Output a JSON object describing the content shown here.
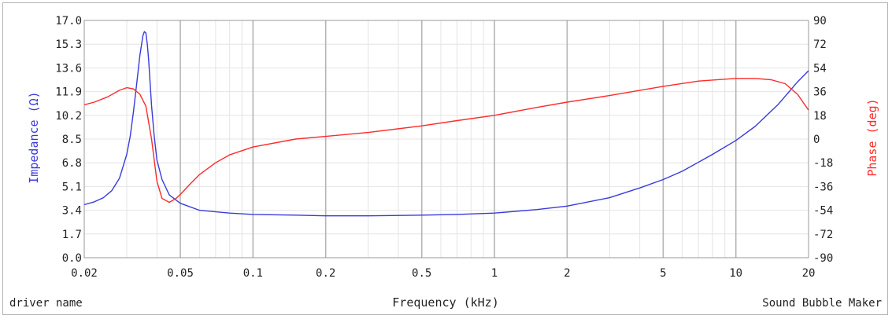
{
  "chart_data": {
    "type": "line",
    "xlabel": "Frequency (kHz)",
    "ylabel_left": "Impedance (Ω)",
    "ylabel_right": "Phase (deg)",
    "x_scale": "log",
    "xlim": [
      0.02,
      20
    ],
    "ylim_left": [
      0.0,
      17.0
    ],
    "ylim_right": [
      -90,
      90
    ],
    "x_ticks": [
      {
        "value": 0.02,
        "label": "0.02"
      },
      {
        "value": 0.05,
        "label": "0.05"
      },
      {
        "value": 0.1,
        "label": "0.1"
      },
      {
        "value": 0.2,
        "label": "0.2"
      },
      {
        "value": 0.5,
        "label": "0.5"
      },
      {
        "value": 1,
        "label": "1"
      },
      {
        "value": 2,
        "label": "2"
      },
      {
        "value": 5,
        "label": "5"
      },
      {
        "value": 10,
        "label": "10"
      },
      {
        "value": 20,
        "label": "20"
      }
    ],
    "y_ticks_left": [
      "0.0",
      "1.7",
      "3.4",
      "5.1",
      "6.8",
      "8.5",
      "10.2",
      "11.9",
      "13.6",
      "15.3",
      "17.0"
    ],
    "y_ticks_right": [
      "-90",
      "-72",
      "-54",
      "-36",
      "-18",
      "0",
      "18",
      "36",
      "54",
      "72",
      "90"
    ],
    "grid": true,
    "series": [
      {
        "axis": "left",
        "color": "#3a3adc",
        "x": [
          0.02,
          0.022,
          0.024,
          0.026,
          0.028,
          0.03,
          0.031,
          0.032,
          0.033,
          0.034,
          0.035,
          0.0355,
          0.036,
          0.0365,
          0.037,
          0.0375,
          0.038,
          0.039,
          0.04,
          0.042,
          0.045,
          0.05,
          0.06,
          0.08,
          0.1,
          0.15,
          0.2,
          0.3,
          0.5,
          0.7,
          1,
          1.5,
          2,
          3,
          4,
          5,
          6,
          8,
          10,
          12,
          15,
          18,
          20
        ],
        "y": [
          3.8,
          4.0,
          4.3,
          4.8,
          5.7,
          7.4,
          8.7,
          10.5,
          12.5,
          14.5,
          15.9,
          16.2,
          16.1,
          15.3,
          14.1,
          12.5,
          10.9,
          8.7,
          7.0,
          5.6,
          4.5,
          3.9,
          3.4,
          3.2,
          3.1,
          3.05,
          3.0,
          3.0,
          3.05,
          3.1,
          3.2,
          3.45,
          3.7,
          4.3,
          5.0,
          5.6,
          6.2,
          7.4,
          8.4,
          9.4,
          11.0,
          12.6,
          13.4
        ]
      },
      {
        "axis": "right",
        "color": "#ff2a2a",
        "x": [
          0.02,
          0.022,
          0.025,
          0.028,
          0.03,
          0.032,
          0.034,
          0.036,
          0.038,
          0.04,
          0.042,
          0.045,
          0.048,
          0.05,
          0.055,
          0.06,
          0.07,
          0.08,
          0.1,
          0.15,
          0.2,
          0.3,
          0.5,
          0.7,
          1,
          1.5,
          2,
          3,
          5,
          7,
          10,
          12,
          14,
          16,
          18,
          20
        ],
        "y": [
          26,
          28,
          32,
          37,
          39,
          38,
          34,
          25,
          0,
          -32,
          -45,
          -48,
          -45,
          -42,
          -34,
          -27,
          -18,
          -12,
          -6,
          0,
          2,
          5,
          10,
          14,
          18,
          24,
          28,
          33,
          40,
          44,
          46,
          46,
          45,
          42,
          34,
          22
        ]
      }
    ]
  },
  "footer": {
    "left": "driver name",
    "right": "Sound Bubble Maker"
  }
}
